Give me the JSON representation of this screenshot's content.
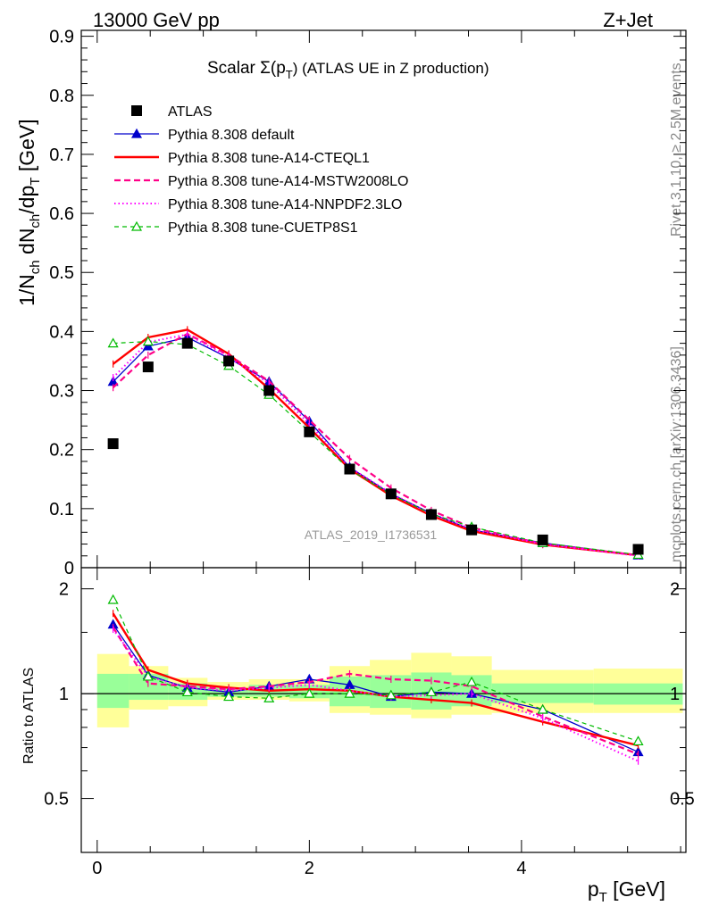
{
  "header": {
    "left": "13000 GeV pp",
    "right": "Z+Jet",
    "title_prefix": "Scalar Σ(p",
    "title_sub": "T",
    "title_suffix": ") (ATLAS UE in Z production)"
  },
  "side_labels": {
    "rivet": "Rivet 3.1.10, ≥ 2.5M events",
    "mcplots": "mcplots.cern.ch [arXiv:1306.3436]"
  },
  "watermark": "ATLAS_2019_I1736531",
  "chart_data": [
    {
      "type": "line",
      "panel": "main",
      "ylabel": "1/N_ch dN_ch/dp_T [GeV]",
      "ylim": [
        0,
        0.91
      ],
      "yticks": [
        "0",
        "0.1",
        "0.2",
        "0.3",
        "0.4",
        "0.5",
        "0.6",
        "0.7",
        "0.8",
        "0.9"
      ],
      "xlim": [
        -0.15,
        5.55
      ],
      "x": [
        0.15,
        0.48,
        0.85,
        1.24,
        1.62,
        2.0,
        2.38,
        2.77,
        3.15,
        3.53,
        4.2,
        5.1
      ],
      "legend_placement": "top-left",
      "series": [
        {
          "name": "ATLAS",
          "color": "#000000",
          "style": "data",
          "values": [
            0.21,
            0.34,
            0.38,
            0.35,
            0.3,
            0.23,
            0.167,
            0.125,
            0.09,
            0.064,
            0.047,
            0.031
          ]
        },
        {
          "name": "Pythia 8.308 default",
          "color": "#0000cc",
          "style": "solid",
          "marker": "triangle-filled",
          "values": [
            0.315,
            0.375,
            0.39,
            0.355,
            0.315,
            0.248,
            0.17,
            0.125,
            0.092,
            0.064,
            0.042,
            0.021
          ]
        },
        {
          "name": "Pythia 8.308 tune-A14-CTEQL1",
          "color": "#ff0000",
          "style": "solid-thick",
          "values": [
            0.345,
            0.39,
            0.403,
            0.362,
            0.303,
            0.237,
            0.167,
            0.122,
            0.088,
            0.062,
            0.039,
            0.021
          ]
        },
        {
          "name": "Pythia 8.308 tune-A14-MSTW2008LO",
          "color": "#ff0088",
          "style": "dashed",
          "values": [
            0.305,
            0.36,
            0.396,
            0.36,
            0.316,
            0.25,
            0.185,
            0.135,
            0.097,
            0.068,
            0.04,
            0.021
          ]
        },
        {
          "name": "Pythia 8.308 tune-A14-NNPDF2.3LO",
          "color": "#ff00ff",
          "style": "dotted",
          "values": [
            0.322,
            0.382,
            0.395,
            0.356,
            0.312,
            0.243,
            0.17,
            0.126,
            0.091,
            0.065,
            0.04,
            0.02
          ]
        },
        {
          "name": "Pythia 8.308 tune-CUETP8S1",
          "color": "#00bb00",
          "style": "dashed-thin",
          "marker": "triangle-open",
          "values": [
            0.38,
            0.383,
            0.378,
            0.342,
            0.293,
            0.23,
            0.166,
            0.124,
            0.091,
            0.069,
            0.042,
            0.022
          ]
        }
      ]
    },
    {
      "type": "line",
      "panel": "ratio",
      "ylabel": "Ratio to ATLAS",
      "xlabel": "p_T [GeV]",
      "ylim": [
        0.35,
        2.3
      ],
      "yticks": [
        "0.5",
        "1",
        "2"
      ],
      "xticks": [
        "0",
        "2",
        "4"
      ],
      "x": [
        0.15,
        0.48,
        0.85,
        1.24,
        1.62,
        2.0,
        2.38,
        2.77,
        3.15,
        3.53,
        4.2,
        5.1
      ],
      "bins": [
        [
          0.0,
          0.3
        ],
        [
          0.3,
          0.67
        ],
        [
          0.67,
          1.04
        ],
        [
          1.04,
          1.43
        ],
        [
          1.43,
          1.81
        ],
        [
          1.81,
          2.19
        ],
        [
          2.19,
          2.57
        ],
        [
          2.57,
          2.96
        ],
        [
          2.96,
          3.34
        ],
        [
          3.34,
          3.72
        ],
        [
          3.72,
          4.68
        ],
        [
          4.68,
          5.52
        ]
      ],
      "band_stat": [
        [
          0.91,
          1.14
        ],
        [
          0.96,
          1.14
        ],
        [
          0.96,
          1.07
        ],
        [
          0.98,
          1.04
        ],
        [
          0.98,
          1.06
        ],
        [
          0.97,
          1.06
        ],
        [
          0.92,
          1.12
        ],
        [
          0.91,
          1.13
        ],
        [
          0.9,
          1.15
        ],
        [
          0.92,
          1.13
        ],
        [
          0.94,
          1.07
        ],
        [
          0.93,
          1.07
        ]
      ],
      "band_total": [
        [
          0.8,
          1.3
        ],
        [
          0.9,
          1.2
        ],
        [
          0.92,
          1.11
        ],
        [
          0.96,
          1.08
        ],
        [
          0.96,
          1.1
        ],
        [
          0.95,
          1.1
        ],
        [
          0.88,
          1.2
        ],
        [
          0.87,
          1.25
        ],
        [
          0.85,
          1.31
        ],
        [
          0.87,
          1.28
        ],
        [
          0.88,
          1.17
        ],
        [
          0.88,
          1.18
        ]
      ],
      "series": [
        {
          "name": "Pythia 8.308 default",
          "color": "#0000cc",
          "style": "solid",
          "marker": "triangle-filled",
          "values": [
            1.58,
            1.13,
            1.04,
            1.01,
            1.05,
            1.1,
            1.06,
            0.98,
            1.01,
            1.0,
            0.9,
            0.68
          ]
        },
        {
          "name": "Pythia 8.308 tune-A14-CTEQL1",
          "color": "#ff0000",
          "style": "solid-thick",
          "values": [
            1.7,
            1.17,
            1.07,
            1.04,
            1.02,
            1.03,
            1.02,
            0.98,
            0.96,
            0.94,
            0.83,
            0.71
          ]
        },
        {
          "name": "Pythia 8.308 tune-A14-MSTW2008LO",
          "color": "#ff0088",
          "style": "dashed",
          "values": [
            1.55,
            1.07,
            1.05,
            1.03,
            1.05,
            1.08,
            1.14,
            1.1,
            1.09,
            1.05,
            0.86,
            0.67
          ]
        },
        {
          "name": "Pythia 8.308 tune-A14-NNPDF2.3LO",
          "color": "#ff00ff",
          "style": "dotted",
          "values": [
            1.53,
            1.12,
            1.04,
            1.02,
            1.04,
            1.06,
            1.02,
            0.98,
            0.99,
            1.0,
            0.85,
            0.64
          ]
        },
        {
          "name": "Pythia 8.308 tune-CUETP8S1",
          "color": "#00bb00",
          "style": "dashed-thin",
          "marker": "triangle-open",
          "values": [
            1.86,
            1.12,
            1.01,
            0.98,
            0.97,
            1.0,
            1.0,
            0.99,
            1.01,
            1.08,
            0.9,
            0.73
          ]
        }
      ]
    }
  ]
}
